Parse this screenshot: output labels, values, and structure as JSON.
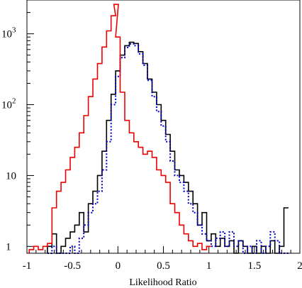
{
  "chart_data": {
    "type": "histogram",
    "title": "",
    "xlabel": "Likelihood Ratio",
    "ylabel": "",
    "xlim": [
      -1,
      2
    ],
    "ylim": [
      0.8,
      3000
    ],
    "yscale": "log",
    "grid": false,
    "x_ticks": [
      {
        "value": -1,
        "label": "-1"
      },
      {
        "value": -0.5,
        "label": "-0.5"
      },
      {
        "value": 0,
        "label": "0"
      },
      {
        "value": 0.5,
        "label": "0.5"
      },
      {
        "value": 1,
        "label": "1"
      },
      {
        "value": 1.5,
        "label": "1.5"
      },
      {
        "value": 2,
        "label": "2"
      }
    ],
    "y_ticks": [
      {
        "value": 1,
        "label": "1"
      },
      {
        "value": 10,
        "label": "10"
      },
      {
        "value": 100,
        "base": "10",
        "exp": "2"
      },
      {
        "value": 1000,
        "base": "10",
        "exp": "3"
      }
    ],
    "series": [
      {
        "color": "#000000",
        "style": "solid",
        "points": [
          [
            -0.75,
            1
          ],
          [
            -0.7,
            1.5
          ],
          [
            -0.65,
            0.8
          ],
          [
            -0.6,
            1
          ],
          [
            -0.55,
            1.3
          ],
          [
            -0.5,
            1.6
          ],
          [
            -0.45,
            2
          ],
          [
            -0.4,
            3
          ],
          [
            -0.35,
            1.6
          ],
          [
            -0.3,
            4
          ],
          [
            -0.25,
            6
          ],
          [
            -0.2,
            10
          ],
          [
            -0.15,
            22
          ],
          [
            -0.1,
            60
          ],
          [
            -0.05,
            140
          ],
          [
            0.0,
            300
          ],
          [
            0.05,
            500
          ],
          [
            0.1,
            680
          ],
          [
            0.15,
            760
          ],
          [
            0.2,
            730
          ],
          [
            0.25,
            560
          ],
          [
            0.3,
            380
          ],
          [
            0.35,
            230
          ],
          [
            0.4,
            150
          ],
          [
            0.45,
            100
          ],
          [
            0.5,
            60
          ],
          [
            0.55,
            38
          ],
          [
            0.6,
            22
          ],
          [
            0.65,
            12
          ],
          [
            0.7,
            10
          ],
          [
            0.75,
            8
          ],
          [
            0.8,
            6
          ],
          [
            0.85,
            4
          ],
          [
            0.9,
            2
          ],
          [
            0.95,
            3
          ],
          [
            1.0,
            1.2
          ],
          [
            1.05,
            1.5
          ],
          [
            1.1,
            1
          ],
          [
            1.15,
            1.3
          ],
          [
            1.2,
            1
          ],
          [
            1.25,
            1.2
          ],
          [
            1.3,
            0.8
          ],
          [
            1.35,
            1.2
          ],
          [
            1.4,
            1
          ],
          [
            1.45,
            0.8
          ],
          [
            1.5,
            1
          ],
          [
            1.55,
            0.8
          ],
          [
            1.6,
            1
          ],
          [
            1.65,
            0.8
          ],
          [
            1.7,
            1.2
          ],
          [
            1.75,
            0.8
          ],
          [
            1.8,
            1
          ],
          [
            1.85,
            3.5
          ]
        ]
      },
      {
        "color": "#0000cc",
        "style": "dotted",
        "points": [
          [
            -0.75,
            0.8
          ],
          [
            -0.7,
            1
          ],
          [
            -0.65,
            0.8
          ],
          [
            -0.6,
            0.8
          ],
          [
            -0.55,
            0.8
          ],
          [
            -0.5,
            1
          ],
          [
            -0.45,
            0.8
          ],
          [
            -0.4,
            1.3
          ],
          [
            -0.35,
            2
          ],
          [
            -0.3,
            3
          ],
          [
            -0.25,
            4
          ],
          [
            -0.2,
            6
          ],
          [
            -0.15,
            12
          ],
          [
            -0.1,
            30
          ],
          [
            -0.05,
            100
          ],
          [
            0.0,
            250
          ],
          [
            0.05,
            460
          ],
          [
            0.1,
            640
          ],
          [
            0.15,
            720
          ],
          [
            0.2,
            680
          ],
          [
            0.25,
            520
          ],
          [
            0.3,
            360
          ],
          [
            0.35,
            220
          ],
          [
            0.4,
            130
          ],
          [
            0.45,
            80
          ],
          [
            0.5,
            50
          ],
          [
            0.55,
            30
          ],
          [
            0.6,
            16
          ],
          [
            0.65,
            10
          ],
          [
            0.7,
            8
          ],
          [
            0.75,
            6
          ],
          [
            0.8,
            4
          ],
          [
            0.85,
            3
          ],
          [
            0.9,
            2
          ],
          [
            0.95,
            1.5
          ],
          [
            1.0,
            1.2
          ],
          [
            1.05,
            1
          ],
          [
            1.1,
            1.3
          ],
          [
            1.15,
            1.6
          ],
          [
            1.2,
            1
          ],
          [
            1.25,
            1.6
          ],
          [
            1.3,
            1
          ],
          [
            1.35,
            1.2
          ],
          [
            1.4,
            0.8
          ],
          [
            1.45,
            1
          ],
          [
            1.5,
            0.8
          ],
          [
            1.55,
            1.2
          ],
          [
            1.6,
            0.8
          ],
          [
            1.65,
            1
          ],
          [
            1.7,
            1.6
          ],
          [
            1.75,
            1.2
          ],
          [
            1.8,
            0.8
          ],
          [
            1.85,
            0.8
          ]
        ]
      },
      {
        "color": "#ee0000",
        "style": "solid",
        "points": [
          [
            -0.95,
            0.9
          ],
          [
            -0.9,
            1
          ],
          [
            -0.85,
            0.9
          ],
          [
            -0.8,
            1
          ],
          [
            -0.75,
            1.1
          ],
          [
            -0.7,
            3.5
          ],
          [
            -0.65,
            6
          ],
          [
            -0.6,
            8
          ],
          [
            -0.55,
            12
          ],
          [
            -0.5,
            18
          ],
          [
            -0.45,
            25
          ],
          [
            -0.4,
            40
          ],
          [
            -0.35,
            70
          ],
          [
            -0.3,
            130
          ],
          [
            -0.25,
            230
          ],
          [
            -0.2,
            380
          ],
          [
            -0.15,
            650
          ],
          [
            -0.1,
            1100
          ],
          [
            -0.05,
            1800
          ],
          [
            -0.02,
            2600
          ],
          [
            0.0,
            900
          ],
          [
            0.05,
            150
          ],
          [
            0.1,
            60
          ],
          [
            0.15,
            40
          ],
          [
            0.2,
            30
          ],
          [
            0.25,
            25
          ],
          [
            0.3,
            20
          ],
          [
            0.35,
            22
          ],
          [
            0.4,
            18
          ],
          [
            0.45,
            12
          ],
          [
            0.5,
            10
          ],
          [
            0.55,
            8
          ],
          [
            0.6,
            4
          ],
          [
            0.65,
            3
          ],
          [
            0.7,
            2
          ],
          [
            0.75,
            1.5
          ],
          [
            0.8,
            1.2
          ],
          [
            0.85,
            1
          ],
          [
            0.9,
            1.1
          ],
          [
            0.95,
            0.9
          ],
          [
            1.0,
            1
          ]
        ]
      }
    ]
  }
}
